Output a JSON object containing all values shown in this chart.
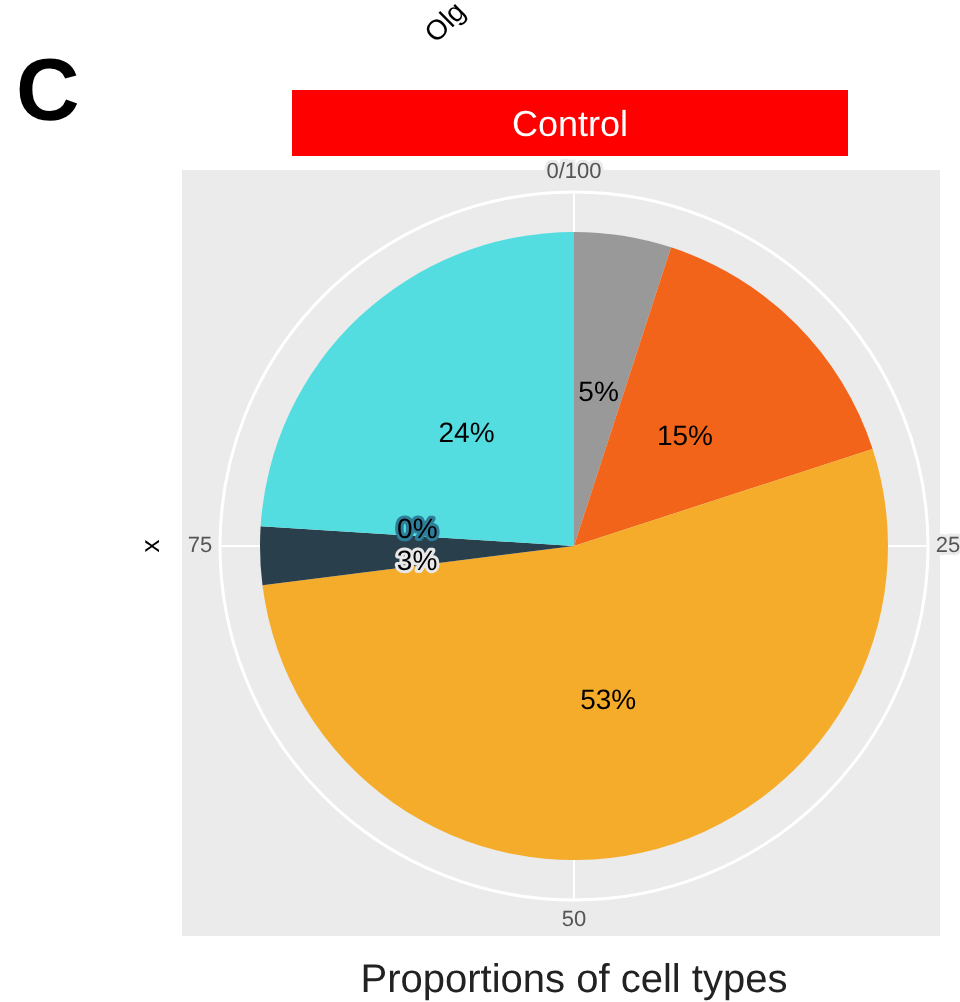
{
  "chart_data": {
    "type": "pie",
    "title": "Control",
    "xlabel": "Proportions of cell types",
    "ylabel": "x",
    "categories": [
      null,
      null,
      null,
      null,
      null,
      null
    ],
    "values": [
      5,
      15,
      53,
      3,
      0,
      24
    ],
    "colors": [
      "#999999",
      "#f26419",
      "#f5ac2b",
      "#2a3f4c",
      "#2e7d99",
      "#53dde0"
    ],
    "value_labels": [
      "5%",
      "15%",
      "53%",
      "3%",
      "0%",
      "24%"
    ],
    "annotations": [
      "C",
      "Olg",
      "0/100",
      "25",
      "50",
      "75"
    ]
  }
}
